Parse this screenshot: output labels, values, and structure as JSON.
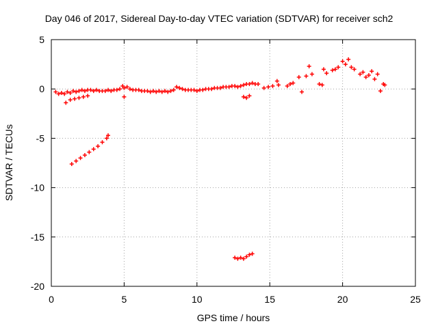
{
  "chart_data": {
    "type": "scatter",
    "title": "Day 046 of 2017, Sidereal Day-to-day VTEC variation (SDTVAR) for receiver sch2",
    "xlabel": "GPS time / hours",
    "ylabel": "SDTVAR / TECUs",
    "xlim": [
      0,
      25
    ],
    "ylim": [
      -20,
      5
    ],
    "xticks": [
      0,
      5,
      10,
      15,
      20,
      25
    ],
    "yticks": [
      5,
      0,
      -5,
      -10,
      -15,
      -20
    ],
    "grid": true,
    "marker": "+",
    "color": "#ff0000",
    "series": [
      {
        "name": "SDTVAR",
        "points": [
          [
            0.3,
            -0.3
          ],
          [
            0.5,
            -0.5
          ],
          [
            0.7,
            -0.4
          ],
          [
            0.9,
            -0.5
          ],
          [
            1.1,
            -0.3
          ],
          [
            1.3,
            -0.4
          ],
          [
            1.5,
            -0.2
          ],
          [
            1.7,
            -0.3
          ],
          [
            1.9,
            -0.2
          ],
          [
            2.1,
            -0.1
          ],
          [
            2.3,
            -0.2
          ],
          [
            2.5,
            -0.1
          ],
          [
            2.7,
            -0.1
          ],
          [
            2.9,
            -0.2
          ],
          [
            3.1,
            -0.1
          ],
          [
            3.3,
            -0.2
          ],
          [
            3.5,
            -0.2
          ],
          [
            3.7,
            -0.2
          ],
          [
            3.9,
            -0.1
          ],
          [
            4.1,
            -0.2
          ],
          [
            4.3,
            -0.1
          ],
          [
            4.5,
            -0.1
          ],
          [
            4.7,
            0.0
          ],
          [
            4.9,
            0.3
          ],
          [
            5.0,
            0.1
          ],
          [
            5.0,
            -0.8
          ],
          [
            5.2,
            0.2
          ],
          [
            5.4,
            0.0
          ],
          [
            5.6,
            -0.1
          ],
          [
            5.8,
            -0.1
          ],
          [
            6.0,
            -0.1
          ],
          [
            6.2,
            -0.2
          ],
          [
            6.4,
            -0.2
          ],
          [
            6.6,
            -0.2
          ],
          [
            6.8,
            -0.3
          ],
          [
            7.0,
            -0.2
          ],
          [
            7.2,
            -0.3
          ],
          [
            7.4,
            -0.2
          ],
          [
            7.6,
            -0.3
          ],
          [
            7.8,
            -0.2
          ],
          [
            8.0,
            -0.3
          ],
          [
            8.2,
            -0.2
          ],
          [
            8.4,
            -0.1
          ],
          [
            8.6,
            0.2
          ],
          [
            8.8,
            0.1
          ],
          [
            9.0,
            0.0
          ],
          [
            9.2,
            -0.1
          ],
          [
            9.4,
            -0.1
          ],
          [
            9.6,
            -0.1
          ],
          [
            9.8,
            -0.1
          ],
          [
            10.0,
            -0.2
          ],
          [
            10.2,
            -0.1
          ],
          [
            10.4,
            -0.1
          ],
          [
            10.6,
            0.0
          ],
          [
            10.8,
            0.0
          ],
          [
            11.0,
            0.0
          ],
          [
            11.2,
            0.1
          ],
          [
            11.4,
            0.1
          ],
          [
            11.6,
            0.1
          ],
          [
            11.8,
            0.2
          ],
          [
            12.0,
            0.2
          ],
          [
            12.2,
            0.2
          ],
          [
            12.4,
            0.3
          ],
          [
            12.6,
            0.3
          ],
          [
            12.8,
            0.2
          ],
          [
            13.0,
            0.3
          ],
          [
            13.2,
            0.4
          ],
          [
            13.4,
            0.5
          ],
          [
            13.6,
            0.5
          ],
          [
            13.8,
            0.6
          ],
          [
            13.2,
            -0.8
          ],
          [
            13.4,
            -0.9
          ],
          [
            13.6,
            -0.7
          ],
          [
            14.0,
            0.5
          ],
          [
            14.2,
            0.5
          ],
          [
            14.6,
            0.1
          ],
          [
            14.9,
            0.2
          ],
          [
            15.2,
            0.3
          ],
          [
            15.5,
            0.8
          ],
          [
            15.6,
            0.4
          ],
          [
            16.2,
            0.3
          ],
          [
            16.4,
            0.5
          ],
          [
            16.6,
            0.6
          ],
          [
            17.0,
            1.2
          ],
          [
            17.2,
            -0.3
          ],
          [
            17.5,
            1.3
          ],
          [
            17.7,
            2.3
          ],
          [
            17.9,
            1.5
          ],
          [
            18.4,
            0.5
          ],
          [
            18.6,
            0.4
          ],
          [
            18.7,
            2.0
          ],
          [
            18.9,
            1.6
          ],
          [
            19.3,
            1.9
          ],
          [
            19.5,
            2.0
          ],
          [
            19.7,
            2.2
          ],
          [
            20.0,
            2.8
          ],
          [
            20.2,
            2.5
          ],
          [
            20.4,
            3.0
          ],
          [
            20.6,
            2.2
          ],
          [
            20.8,
            2.0
          ],
          [
            21.2,
            1.5
          ],
          [
            21.4,
            1.7
          ],
          [
            21.6,
            1.2
          ],
          [
            21.8,
            1.4
          ],
          [
            22.0,
            1.8
          ],
          [
            22.2,
            1.0
          ],
          [
            22.4,
            1.5
          ],
          [
            22.6,
            -0.2
          ],
          [
            22.8,
            0.5
          ],
          [
            22.9,
            0.4
          ],
          [
            1.0,
            -1.4
          ],
          [
            1.3,
            -1.1
          ],
          [
            1.6,
            -1.0
          ],
          [
            1.9,
            -0.9
          ],
          [
            2.2,
            -0.8
          ],
          [
            2.5,
            -0.7
          ],
          [
            1.4,
            -7.6
          ],
          [
            1.7,
            -7.3
          ],
          [
            2.0,
            -7.0
          ],
          [
            2.3,
            -6.7
          ],
          [
            2.6,
            -6.4
          ],
          [
            2.9,
            -6.1
          ],
          [
            3.2,
            -5.8
          ],
          [
            3.5,
            -5.4
          ],
          [
            3.8,
            -5.0
          ],
          [
            3.9,
            -4.7
          ],
          [
            12.6,
            -17.1
          ],
          [
            12.8,
            -17.2
          ],
          [
            13.0,
            -17.1
          ],
          [
            13.2,
            -17.2
          ],
          [
            13.4,
            -17.0
          ],
          [
            13.6,
            -16.8
          ],
          [
            13.8,
            -16.7
          ]
        ]
      }
    ]
  }
}
